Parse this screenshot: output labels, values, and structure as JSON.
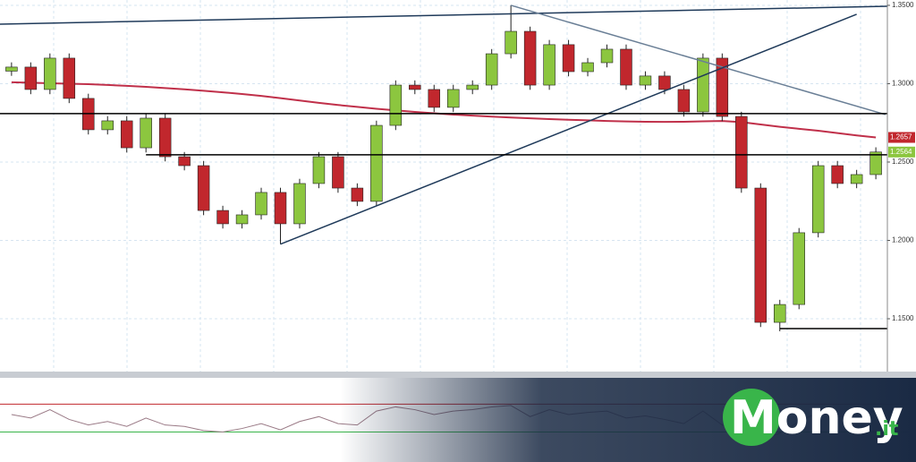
{
  "chart_data": {
    "type": "candlestick",
    "categories": [
      null,
      null,
      null,
      null,
      null,
      null,
      null,
      null,
      null,
      null,
      null,
      null,
      null,
      null,
      null,
      null,
      null,
      null,
      null,
      null,
      null,
      null,
      null,
      null,
      null,
      null,
      null,
      null,
      null,
      null,
      null,
      null,
      null,
      null,
      null,
      null,
      null,
      null,
      null,
      null,
      null,
      null,
      null,
      null,
      null,
      null
    ],
    "open": [
      1.308,
      1.3106,
      1.2963,
      1.3163,
      1.2906,
      1.2706,
      1.2763,
      1.2591,
      1.278,
      1.2534,
      1.2477,
      1.2191,
      1.2106,
      1.2163,
      1.2306,
      1.2106,
      1.2363,
      1.2534,
      1.2334,
      1.2249,
      1.2734,
      1.2991,
      1.2963,
      1.2849,
      1.2963,
      1.2991,
      1.3191,
      1.3334,
      1.2991,
      1.3249,
      1.3077,
      1.3134,
      1.322,
      1.2991,
      1.3049,
      1.2963,
      1.282,
      1.3163,
      1.2791,
      1.2334,
      1.1477,
      1.1591,
      1.2049,
      1.2477,
      1.2363,
      1.242
    ],
    "high": [
      1.3136,
      1.3136,
      1.3193,
      1.3193,
      1.2936,
      1.2793,
      1.2793,
      1.281,
      1.281,
      1.2564,
      1.2507,
      1.2221,
      1.2193,
      1.2336,
      1.2336,
      1.2393,
      1.2564,
      1.2564,
      1.2364,
      1.2764,
      1.3021,
      1.3021,
      1.2993,
      1.2993,
      1.3021,
      1.3221,
      1.35,
      1.3364,
      1.3279,
      1.3279,
      1.3164,
      1.325,
      1.325,
      1.3079,
      1.3079,
      1.2993,
      1.3193,
      1.3193,
      1.2821,
      1.2364,
      1.1621,
      1.2079,
      1.2507,
      1.2507,
      1.245,
      1.2594
    ],
    "low": [
      1.305,
      1.2933,
      1.2933,
      1.2876,
      1.2676,
      1.2676,
      1.2561,
      1.2561,
      1.2504,
      1.2447,
      1.2161,
      1.2076,
      1.2076,
      1.2133,
      1.1976,
      1.2076,
      1.2333,
      1.2304,
      1.2219,
      1.2219,
      1.2704,
      1.2933,
      1.2819,
      1.2819,
      1.2933,
      1.2961,
      1.3161,
      1.2961,
      1.2961,
      1.3047,
      1.3047,
      1.3104,
      1.2961,
      1.2961,
      1.2933,
      1.279,
      1.279,
      1.2761,
      1.2304,
      1.1447,
      1.142,
      1.1561,
      1.2019,
      1.2333,
      1.2333,
      1.239
    ],
    "close": [
      1.3106,
      1.2963,
      1.3163,
      1.2906,
      1.2706,
      1.2763,
      1.2591,
      1.278,
      1.2534,
      1.2477,
      1.2191,
      1.2106,
      1.2163,
      1.2306,
      1.2106,
      1.2363,
      1.2534,
      1.2334,
      1.2249,
      1.2734,
      1.2991,
      1.2963,
      1.2849,
      1.2963,
      1.2991,
      1.3191,
      1.3334,
      1.2991,
      1.3249,
      1.3077,
      1.3134,
      1.322,
      1.2991,
      1.3049,
      1.2963,
      1.282,
      1.3163,
      1.2791,
      1.2334,
      1.1477,
      1.1591,
      1.2049,
      1.2477,
      1.2363,
      1.242,
      1.2564
    ],
    "up_color": "#8cc63f",
    "down_color": "#c1272d",
    "xlim": [
      -0.6,
      45.6
    ],
    "ylim": [
      1.1163,
      1.3534
    ],
    "yticks": [
      {
        "value": 1.35,
        "label": "1.3500"
      },
      {
        "value": 1.3,
        "label": "1.3000"
      },
      {
        "value": 1.25,
        "label": "1.2500"
      },
      {
        "value": 1.2,
        "label": "1.2000"
      },
      {
        "value": 1.15,
        "label": "1.1500"
      }
    ],
    "grid": true,
    "moving_average": {
      "color": "#c0304a",
      "values": [
        1.3009,
        1.3006,
        1.3003,
        1.3,
        1.2997,
        1.2992,
        1.2986,
        1.298,
        1.2972,
        1.2964,
        1.2955,
        1.2945,
        1.2934,
        1.2922,
        1.2908,
        1.2893,
        1.2878,
        1.2864,
        1.2852,
        1.284,
        1.283,
        1.282,
        1.2811,
        1.2803,
        1.2796,
        1.279,
        1.2784,
        1.2779,
        1.2774,
        1.277,
        1.2766,
        1.2762,
        1.2759,
        1.2757,
        1.2756,
        1.2757,
        1.276,
        1.2762,
        1.2755,
        1.274,
        1.2725,
        1.2712,
        1.27,
        1.2685,
        1.267,
        1.2657
      ]
    },
    "lines": [
      {
        "color": "#1f3a5a",
        "x": [
          -0.6,
          45.6
        ],
        "y": [
          1.338,
          1.3494
        ]
      },
      {
        "color": "#6a7f96",
        "x": [
          26,
          45.5
        ],
        "y": [
          1.35,
          1.2803
        ]
      },
      {
        "color": "#1f3a5a",
        "x": [
          14,
          44
        ],
        "y": [
          1.1976,
          1.3443
        ]
      },
      {
        "color": "#000000",
        "x": [
          -0.6,
          45.6
        ],
        "y": [
          1.2809,
          1.2809
        ]
      },
      {
        "color": "#000000",
        "x": [
          7,
          45.6
        ],
        "y": [
          1.2546,
          1.2546
        ]
      },
      {
        "color": "#000000",
        "x": [
          40,
          45.6
        ],
        "y": [
          1.1437,
          1.1437
        ]
      }
    ],
    "price_tags": [
      {
        "value": 1.2657,
        "color": "#c1272d"
      },
      {
        "value": 1.2564,
        "color": "#8cc63f"
      }
    ],
    "indicator": {
      "color": "#9a7a86",
      "ylim": [
        10,
        100
      ],
      "levels": [
        70,
        30
      ],
      "level_colors": [
        "#c1272d",
        "#39b54a"
      ],
      "values": [
        55,
        50,
        62,
        48,
        40,
        45,
        38,
        50,
        40,
        38,
        32,
        30,
        35,
        42,
        33,
        45,
        52,
        42,
        40,
        60,
        66,
        62,
        55,
        60,
        62,
        66,
        68,
        52,
        62,
        55,
        58,
        60,
        50,
        53,
        48,
        42,
        60,
        40,
        30,
        20,
        28,
        45,
        58,
        52,
        55,
        60
      ]
    }
  },
  "watermark": {
    "text": "Money",
    "suffix": ".it"
  }
}
